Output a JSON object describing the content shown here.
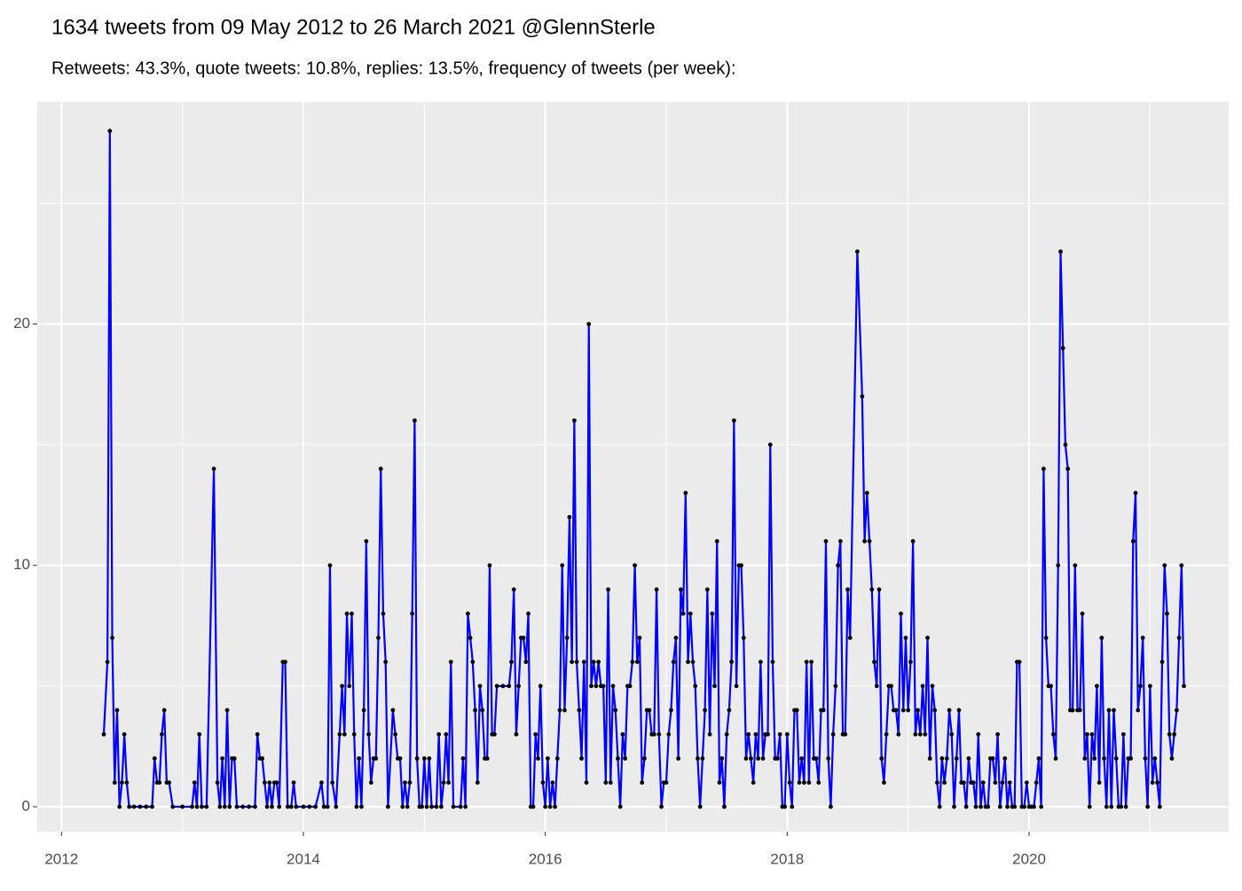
{
  "chart_data": {
    "type": "line",
    "title": "1634 tweets from 09 May 2012 to 26 March 2021 @GlennSterle",
    "subtitle": "Retweets: 43.3%, quote tweets: 10.8%, replies: 13.5%, frequency of tweets (per week):",
    "x": [
      2012.35,
      2012.38,
      2012.4,
      2012.42,
      2012.44,
      2012.46,
      2012.48,
      2012.5,
      2012.52,
      2012.54,
      2012.56,
      2012.6,
      2012.65,
      2012.7,
      2012.75,
      2012.77,
      2012.79,
      2012.81,
      2012.83,
      2012.85,
      2012.87,
      2012.89,
      2012.92,
      2013,
      2013.08,
      2013.1,
      2013.12,
      2013.14,
      2013.16,
      2013.2,
      2013.26,
      2013.29,
      2013.31,
      2013.33,
      2013.35,
      2013.37,
      2013.39,
      2013.41,
      2013.43,
      2013.45,
      2013.5,
      2013.55,
      2013.6,
      2013.62,
      2013.64,
      2013.66,
      2013.68,
      2013.7,
      2013.72,
      2013.74,
      2013.76,
      2013.78,
      2013.8,
      2013.83,
      2013.85,
      2013.87,
      2013.9,
      2013.92,
      2013.94,
      2014,
      2014.05,
      2014.1,
      2014.15,
      2014.17,
      2014.2,
      2014.22,
      2014.24,
      2014.27,
      2014.3,
      2014.32,
      2014.34,
      2014.36,
      2014.38,
      2014.4,
      2014.42,
      2014.44,
      2014.46,
      2014.48,
      2014.5,
      2014.52,
      2014.54,
      2014.56,
      2014.58,
      2014.6,
      2014.62,
      2014.64,
      2014.66,
      2014.68,
      2014.7,
      2014.74,
      2014.76,
      2014.78,
      2014.8,
      2014.82,
      2014.84,
      2014.86,
      2014.88,
      2014.9,
      2014.92,
      2014.94,
      2014.96,
      2014.98,
      2015,
      2015.02,
      2015.04,
      2015.06,
      2015.1,
      2015.12,
      2015.14,
      2015.16,
      2015.18,
      2015.2,
      2015.22,
      2015.24,
      2015.3,
      2015.32,
      2015.34,
      2015.36,
      2015.38,
      2015.4,
      2015.42,
      2015.44,
      2015.46,
      2015.48,
      2015.5,
      2015.52,
      2015.54,
      2015.56,
      2015.58,
      2015.6,
      2015.65,
      2015.7,
      2015.72,
      2015.74,
      2015.76,
      2015.78,
      2015.8,
      2015.82,
      2015.84,
      2015.86,
      2015.88,
      2015.9,
      2015.92,
      2015.94,
      2015.96,
      2015.98,
      2016,
      2016.02,
      2016.04,
      2016.06,
      2016.08,
      2016.1,
      2016.12,
      2016.14,
      2016.16,
      2016.18,
      2016.2,
      2016.22,
      2016.24,
      2016.26,
      2016.28,
      2016.3,
      2016.32,
      2016.34,
      2016.36,
      2016.38,
      2016.4,
      2016.42,
      2016.44,
      2016.46,
      2016.48,
      2016.5,
      2016.52,
      2016.54,
      2016.56,
      2016.58,
      2016.6,
      2016.62,
      2016.64,
      2016.66,
      2016.68,
      2016.7,
      2016.72,
      2016.74,
      2016.76,
      2016.78,
      2016.8,
      2016.82,
      2016.84,
      2016.86,
      2016.88,
      2016.9,
      2016.92,
      2016.94,
      2016.96,
      2016.98,
      2017,
      2017.02,
      2017.04,
      2017.06,
      2017.08,
      2017.1,
      2017.12,
      2017.14,
      2017.16,
      2017.18,
      2017.2,
      2017.22,
      2017.24,
      2017.26,
      2017.28,
      2017.3,
      2017.32,
      2017.34,
      2017.36,
      2017.38,
      2017.4,
      2017.42,
      2017.44,
      2017.46,
      2017.48,
      2017.5,
      2017.52,
      2017.54,
      2017.56,
      2017.58,
      2017.6,
      2017.62,
      2017.64,
      2017.66,
      2017.68,
      2017.7,
      2017.72,
      2017.74,
      2017.76,
      2017.78,
      2017.8,
      2017.82,
      2017.84,
      2017.86,
      2017.88,
      2017.9,
      2017.92,
      2017.94,
      2017.96,
      2017.98,
      2018,
      2018.02,
      2018.04,
      2018.06,
      2018.08,
      2018.1,
      2018.12,
      2018.14,
      2018.16,
      2018.18,
      2018.2,
      2018.22,
      2018.24,
      2018.26,
      2018.28,
      2018.3,
      2018.32,
      2018.34,
      2018.36,
      2018.38,
      2018.4,
      2018.42,
      2018.44,
      2018.46,
      2018.48,
      2018.5,
      2018.52,
      2018.58,
      2018.62,
      2018.64,
      2018.66,
      2018.68,
      2018.7,
      2018.72,
      2018.74,
      2018.76,
      2018.78,
      2018.8,
      2018.82,
      2018.84,
      2018.86,
      2018.88,
      2018.9,
      2018.92,
      2018.94,
      2018.96,
      2018.98,
      2019,
      2019.02,
      2019.04,
      2019.06,
      2019.08,
      2019.1,
      2019.12,
      2019.14,
      2019.16,
      2019.18,
      2019.2,
      2019.22,
      2019.24,
      2019.26,
      2019.28,
      2019.3,
      2019.32,
      2019.34,
      2019.36,
      2019.38,
      2019.4,
      2019.42,
      2019.44,
      2019.46,
      2019.48,
      2019.5,
      2019.52,
      2019.54,
      2019.56,
      2019.58,
      2019.6,
      2019.62,
      2019.64,
      2019.66,
      2019.68,
      2019.7,
      2019.72,
      2019.74,
      2019.76,
      2019.78,
      2019.8,
      2019.82,
      2019.84,
      2019.86,
      2019.88,
      2019.9,
      2019.92,
      2019.94,
      2019.96,
      2019.98,
      2020,
      2020.02,
      2020.04,
      2020.06,
      2020.08,
      2020.1,
      2020.12,
      2020.14,
      2020.16,
      2020.18,
      2020.2,
      2020.22,
      2020.24,
      2020.26,
      2020.28,
      2020.3,
      2020.32,
      2020.34,
      2020.36,
      2020.38,
      2020.4,
      2020.42,
      2020.44,
      2020.46,
      2020.48,
      2020.5,
      2020.52,
      2020.54,
      2020.56,
      2020.58,
      2020.6,
      2020.62,
      2020.64,
      2020.66,
      2020.68,
      2020.7,
      2020.72,
      2020.74,
      2020.76,
      2020.78,
      2020.8,
      2020.82,
      2020.84,
      2020.86,
      2020.88,
      2020.9,
      2020.92,
      2020.94,
      2020.96,
      2020.98,
      2021,
      2021.02,
      2021.04,
      2021.06,
      2021.08,
      2021.1,
      2021.12,
      2021.14,
      2021.16,
      2021.18,
      2021.2,
      2021.22,
      2021.24,
      2021.26,
      2021.28
    ],
    "values": [
      3,
      6,
      28,
      7,
      1,
      4,
      0,
      1,
      3,
      1,
      0,
      0,
      0,
      0,
      0,
      2,
      1,
      1,
      3,
      4,
      1,
      1,
      0,
      0,
      0,
      1,
      0,
      3,
      0,
      0,
      14,
      1,
      0,
      2,
      0,
      4,
      0,
      2,
      2,
      0,
      0,
      0,
      0,
      3,
      2,
      2,
      1,
      0,
      1,
      0,
      1,
      1,
      0,
      6,
      6,
      0,
      0,
      1,
      0,
      0,
      0,
      0,
      1,
      0,
      0,
      10,
      1,
      0,
      3,
      5,
      3,
      8,
      5,
      8,
      3,
      0,
      2,
      0,
      4,
      11,
      3,
      1,
      2,
      2,
      7,
      14,
      8,
      6,
      0,
      4,
      3,
      2,
      2,
      0,
      1,
      0,
      1,
      8,
      16,
      2,
      0,
      0,
      2,
      0,
      2,
      0,
      0,
      3,
      0,
      1,
      3,
      1,
      6,
      0,
      0,
      2,
      0,
      8,
      7,
      6,
      4,
      1,
      5,
      4,
      2,
      2,
      10,
      3,
      3,
      5,
      5,
      5,
      6,
      9,
      3,
      5,
      7,
      7,
      6,
      8,
      0,
      0,
      3,
      2,
      5,
      1,
      0,
      2,
      0,
      1,
      0,
      2,
      4,
      10,
      4,
      7,
      12,
      6,
      16,
      6,
      4,
      2,
      6,
      1,
      20,
      5,
      6,
      5,
      6,
      5,
      5,
      1,
      9,
      1,
      5,
      4,
      2,
      0,
      3,
      2,
      5,
      5,
      6,
      10,
      6,
      7,
      1,
      2,
      4,
      4,
      3,
      3,
      9,
      3,
      0,
      1,
      1,
      3,
      4,
      6,
      7,
      2,
      9,
      8,
      13,
      6,
      8,
      6,
      5,
      2,
      0,
      2,
      4,
      9,
      3,
      8,
      5,
      11,
      1,
      2,
      0,
      3,
      4,
      6,
      16,
      5,
      10,
      10,
      7,
      2,
      3,
      2,
      1,
      3,
      2,
      6,
      2,
      3,
      3,
      15,
      6,
      2,
      2,
      3,
      0,
      0,
      3,
      1,
      0,
      4,
      4,
      1,
      2,
      1,
      6,
      1,
      6,
      2,
      2,
      1,
      4,
      4,
      11,
      2,
      0,
      3,
      5,
      10,
      11,
      3,
      3,
      9,
      7,
      23,
      17,
      11,
      13,
      11,
      9,
      6,
      5,
      9,
      2,
      1,
      3,
      5,
      5,
      4,
      4,
      3,
      8,
      4,
      7,
      4,
      6,
      11,
      3,
      4,
      3,
      5,
      3,
      7,
      2,
      5,
      4,
      1,
      0,
      2,
      1,
      2,
      4,
      3,
      0,
      2,
      4,
      1,
      1,
      0,
      2,
      1,
      1,
      0,
      3,
      0,
      1,
      0,
      0,
      2,
      2,
      1,
      3,
      0,
      1,
      2,
      0,
      1,
      0,
      0,
      6,
      6,
      0,
      0,
      1,
      0,
      0,
      0,
      1,
      2,
      0,
      14,
      7,
      5,
      5,
      3,
      2,
      10,
      23,
      19,
      15,
      14,
      4,
      4,
      10,
      4,
      4,
      8,
      2,
      3,
      0,
      3,
      2,
      5,
      1,
      7,
      2,
      0,
      4,
      0,
      4,
      2,
      0,
      0,
      3,
      0,
      2,
      2,
      11,
      13,
      4,
      5,
      7,
      2,
      0,
      5,
      1,
      2,
      1,
      0,
      6,
      10,
      8,
      3,
      2,
      3,
      4,
      7,
      10,
      5
    ],
    "color": "#0000ff",
    "point_color": "#000000",
    "xlim": [
      2011.8,
      2021.65
    ],
    "xticks": [
      2012,
      2014,
      2016,
      2018,
      2020
    ],
    "ylim": [
      -1.03,
      29.2
    ],
    "yticks": [
      0,
      10,
      20
    ],
    "grid": true,
    "minor_grid": true
  }
}
